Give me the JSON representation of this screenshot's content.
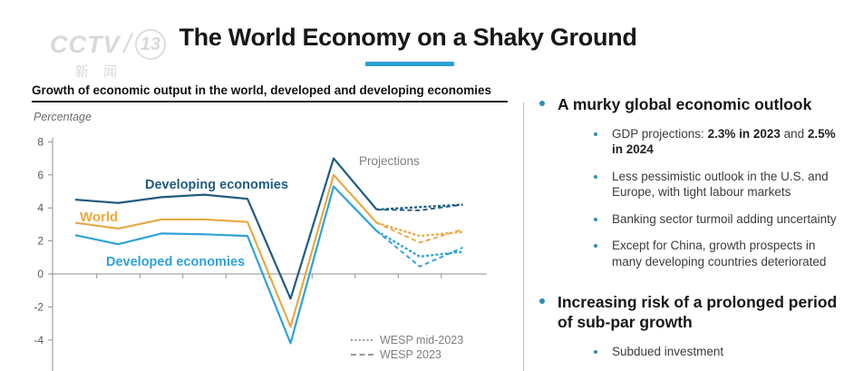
{
  "header": {
    "title": "The World Economy on a Shaky Ground",
    "accent_color": "#2d9fd3",
    "logo": {
      "brand": "CCTV",
      "channel": "13",
      "subtitle": "新闻"
    }
  },
  "chart": {
    "title": "Growth of economic output in the world, developed and developing economies",
    "unit_label": "Percentage",
    "projections_label": "Projections",
    "series_labels": {
      "developing": "Developing economies",
      "world": "World",
      "developed": "Developed economies"
    },
    "legend": [
      {
        "style": "dotted",
        "label": "WESP mid-2023"
      },
      {
        "style": "dashed",
        "label": "WESP 2023"
      }
    ]
  },
  "chart_data": {
    "type": "line",
    "title": "Growth of economic output in the world, developed and developing economies",
    "ylabel": "Percentage",
    "x": [
      2015,
      2016,
      2017,
      2018,
      2019,
      2020,
      2021,
      2022,
      2023,
      2024
    ],
    "x_labels_shown": false,
    "yticks": [
      8,
      6,
      4,
      2,
      0,
      -2,
      -4
    ],
    "ylim": [
      -6,
      8
    ],
    "grid": false,
    "annotation": "Projections",
    "series": [
      {
        "name": "Developing economies",
        "color": "#1f5c80",
        "solid_years": [
          2015,
          2016,
          2017,
          2018,
          2019,
          2020,
          2021,
          2022
        ],
        "solid": [
          4.5,
          4.3,
          4.65,
          4.8,
          4.55,
          -1.5,
          7.0,
          3.9
        ],
        "projection_years": [
          2022,
          2023,
          2024
        ],
        "proj_mid2023": [
          3.9,
          4.05,
          4.2
        ],
        "proj_wesp2023": [
          3.9,
          3.85,
          4.2
        ]
      },
      {
        "name": "World",
        "color": "#e8a944",
        "solid_years": [
          2015,
          2016,
          2017,
          2018,
          2019,
          2020,
          2021,
          2022
        ],
        "solid": [
          3.1,
          2.75,
          3.3,
          3.3,
          3.15,
          -3.2,
          6.0,
          3.1
        ],
        "projection_years": [
          2022,
          2023,
          2024
        ],
        "proj_mid2023": [
          3.1,
          2.3,
          2.55
        ],
        "proj_wesp2023": [
          3.1,
          1.9,
          2.7
        ]
      },
      {
        "name": "Developed economies",
        "color": "#2fa2d8",
        "solid_years": [
          2015,
          2016,
          2017,
          2018,
          2019,
          2020,
          2021,
          2022
        ],
        "solid": [
          2.35,
          1.8,
          2.45,
          2.4,
          2.3,
          -4.2,
          5.3,
          2.6
        ],
        "projection_years": [
          2022,
          2023,
          2024
        ],
        "proj_mid2023": [
          2.6,
          1.05,
          1.35
        ],
        "proj_wesp2023": [
          2.6,
          0.45,
          1.6
        ]
      }
    ]
  },
  "right_panel": {
    "bullet_color": "#2e8fb5",
    "sections": [
      {
        "heading": "A murky global economic outlook",
        "items": [
          {
            "segments": [
              {
                "t": "GDP projections: "
              },
              {
                "t": "2.3% in 2023",
                "b": true
              },
              {
                "t": " and "
              },
              {
                "t": "2.5% in 2024",
                "b": true
              }
            ]
          },
          {
            "segments": [
              {
                "t": "Less pessimistic outlook in the U.S. and Europe, with tight labour markets"
              }
            ]
          },
          {
            "segments": [
              {
                "t": "Banking sector turmoil adding uncertainty"
              }
            ]
          },
          {
            "segments": [
              {
                "t": "Except for China, growth prospects in many developing countries deteriorated"
              }
            ]
          }
        ]
      },
      {
        "heading": "Increasing risk of a prolonged period of sub-par growth",
        "items": [
          {
            "segments": [
              {
                "t": "Subdued investment"
              }
            ]
          }
        ]
      }
    ]
  }
}
